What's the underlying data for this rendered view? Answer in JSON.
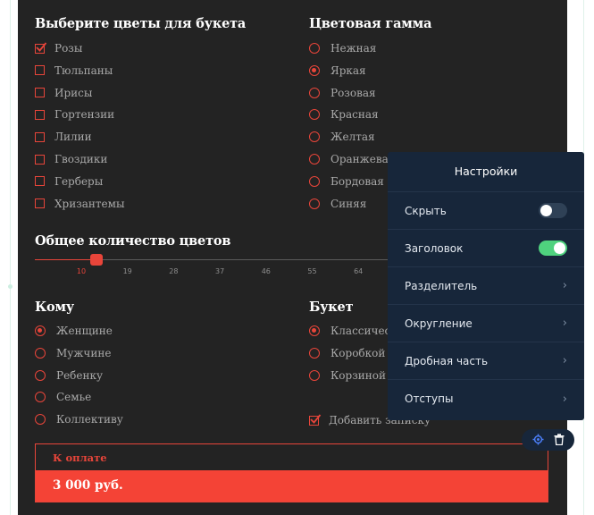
{
  "flowers": {
    "title": "Выберите цветы для букета",
    "options": [
      {
        "label": "Розы",
        "checked": true
      },
      {
        "label": "Тюльпаны",
        "checked": false
      },
      {
        "label": "Ирисы",
        "checked": false
      },
      {
        "label": "Гортензии",
        "checked": false
      },
      {
        "label": "Лилии",
        "checked": false
      },
      {
        "label": "Гвоздики",
        "checked": false
      },
      {
        "label": "Герберы",
        "checked": false
      },
      {
        "label": "Хризантемы",
        "checked": false
      }
    ]
  },
  "palette": {
    "title": "Цветовая гамма",
    "options": [
      {
        "label": "Нежная",
        "selected": false
      },
      {
        "label": "Яркая",
        "selected": true
      },
      {
        "label": "Розовая",
        "selected": false
      },
      {
        "label": "Красная",
        "selected": false
      },
      {
        "label": "Желтая",
        "selected": false
      },
      {
        "label": "Оранжевая",
        "selected": false
      },
      {
        "label": "Бордовая",
        "selected": false
      },
      {
        "label": "Синяя",
        "selected": false
      }
    ]
  },
  "quantity": {
    "title": "Общее количество цветов",
    "ticks": [
      "10",
      "19",
      "28",
      "37",
      "46",
      "55",
      "64"
    ],
    "value": 13
  },
  "recipient": {
    "title": "Кому",
    "options": [
      {
        "label": "Женщине",
        "selected": true
      },
      {
        "label": "Мужчине",
        "selected": false
      },
      {
        "label": "Ребенку",
        "selected": false
      },
      {
        "label": "Семье",
        "selected": false
      },
      {
        "label": "Коллективу",
        "selected": false
      }
    ]
  },
  "bouquet": {
    "title": "Букет",
    "options": [
      {
        "label": "Классическо",
        "selected": true
      },
      {
        "label": "Коробкой",
        "selected": false
      },
      {
        "label": "Корзиной",
        "selected": false
      }
    ],
    "note": {
      "label": "Добавить записку",
      "checked": true
    }
  },
  "payment": {
    "label": "К оплате",
    "amount": "3 000 руб."
  },
  "settings": {
    "title": "Настройки",
    "rows": [
      {
        "label": "Скрыть",
        "kind": "toggle",
        "on": false
      },
      {
        "label": "Заголовок",
        "kind": "toggle",
        "on": true
      },
      {
        "label": "Разделитель",
        "kind": "chevron"
      },
      {
        "label": "Округление",
        "kind": "chevron"
      },
      {
        "label": "Дробная часть",
        "kind": "chevron"
      },
      {
        "label": "Отступы",
        "kind": "chevron"
      }
    ],
    "chevron": "›"
  },
  "tools": {
    "icons": [
      "gear-icon",
      "trash-icon"
    ]
  },
  "colors": {
    "panel_bg": "#232323",
    "accent": "#e8453a",
    "settings_bg": "#17263a",
    "toggle_on": "#4fd27e"
  }
}
